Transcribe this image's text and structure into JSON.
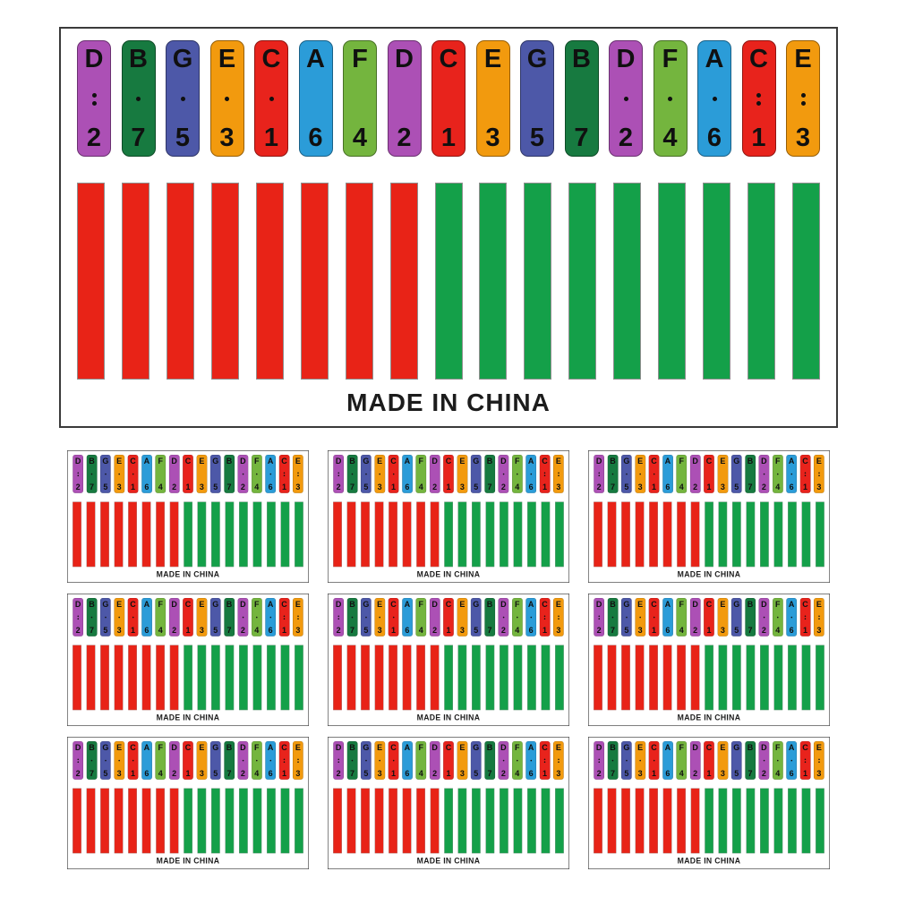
{
  "sheet": {
    "made_in": "MADE IN CHINA",
    "note_colors": {
      "C": "#e8231c",
      "D": "#ac50b5",
      "E": "#f29a0e",
      "F": "#74b53e",
      "G": "#4d58a8",
      "A": "#2b9cd8",
      "B": "#177a40"
    },
    "stickers": [
      {
        "letter": "D",
        "number": "2",
        "dots": 2
      },
      {
        "letter": "B",
        "number": "7",
        "dots": 1
      },
      {
        "letter": "G",
        "number": "5",
        "dots": 1
      },
      {
        "letter": "E",
        "number": "3",
        "dots": 1
      },
      {
        "letter": "C",
        "number": "1",
        "dots": 1
      },
      {
        "letter": "A",
        "number": "6",
        "dots": 0
      },
      {
        "letter": "F",
        "number": "4",
        "dots": 0
      },
      {
        "letter": "D",
        "number": "2",
        "dots": 0
      },
      {
        "letter": "C",
        "number": "1",
        "dots": 0
      },
      {
        "letter": "E",
        "number": "3",
        "dots": 0
      },
      {
        "letter": "G",
        "number": "5",
        "dots": 0
      },
      {
        "letter": "B",
        "number": "7",
        "dots": 0
      },
      {
        "letter": "D",
        "number": "2",
        "dots": 1
      },
      {
        "letter": "F",
        "number": "4",
        "dots": 1
      },
      {
        "letter": "A",
        "number": "6",
        "dots": 1
      },
      {
        "letter": "C",
        "number": "1",
        "dots": 2
      },
      {
        "letter": "E",
        "number": "3",
        "dots": 2
      }
    ],
    "bars": [
      "red",
      "red",
      "red",
      "red",
      "red",
      "red",
      "red",
      "red",
      "green",
      "green",
      "green",
      "green",
      "green",
      "green",
      "green",
      "green",
      "green"
    ],
    "bar_colors": {
      "red": "#e82317",
      "green": "#14a049"
    },
    "small_sheet_count": 9
  }
}
